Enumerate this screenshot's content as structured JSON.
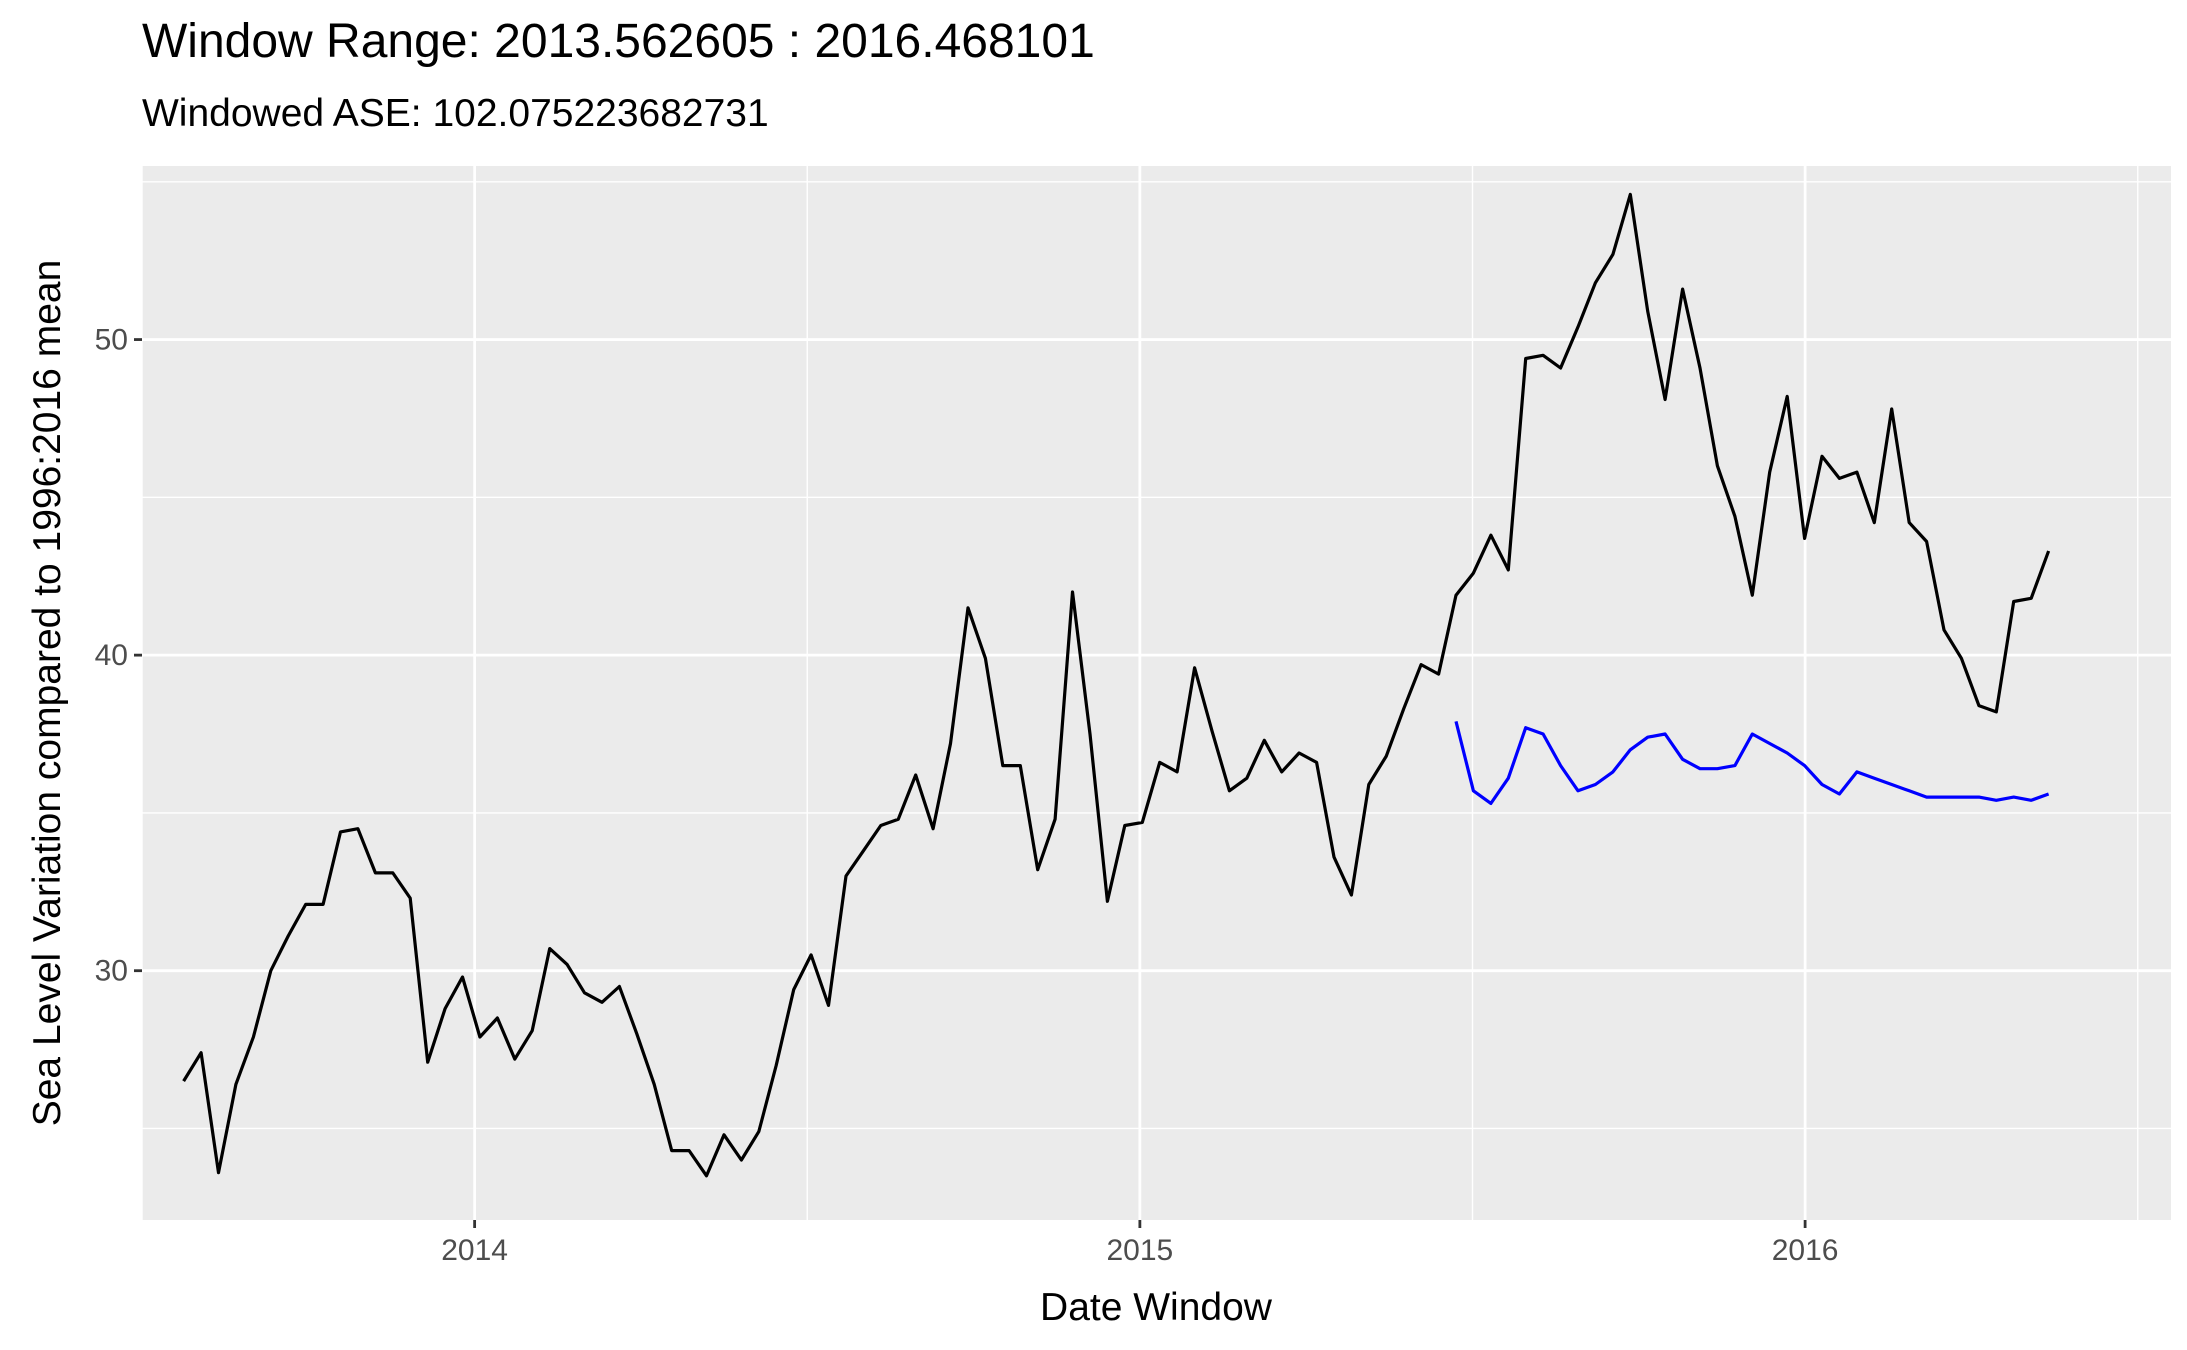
{
  "chart_data": {
    "type": "line",
    "title": "Window Range: 2013.562605 : 2016.468101",
    "subtitle": "Windowed ASE: 102.075223682731",
    "xlabel": "Date Window",
    "ylabel": "Sea Level Variation compared to 1996:2016 mean",
    "xlim": [
      2013.5,
      2016.55
    ],
    "ylim": [
      22.1,
      55.5
    ],
    "x_ticks": [
      2014,
      2015,
      2016
    ],
    "y_ticks": [
      30,
      40,
      50
    ],
    "grid": true,
    "legend": "none",
    "series": [
      {
        "color": "#000000",
        "points": [
          [
            2013.5626,
            26.5
          ],
          [
            2013.5888,
            27.4
          ],
          [
            2013.615,
            23.6
          ],
          [
            2013.6412,
            26.4
          ],
          [
            2013.6674,
            27.9
          ],
          [
            2013.6936,
            30.0
          ],
          [
            2013.7198,
            31.1
          ],
          [
            2013.746,
            32.1
          ],
          [
            2013.7722,
            32.1
          ],
          [
            2013.7984,
            34.4
          ],
          [
            2013.8246,
            34.5
          ],
          [
            2013.8508,
            33.1
          ],
          [
            2013.877,
            33.1
          ],
          [
            2013.9032,
            32.3
          ],
          [
            2013.9294,
            27.1
          ],
          [
            2013.9556,
            28.8
          ],
          [
            2013.9818,
            29.8
          ],
          [
            2014.008,
            27.9
          ],
          [
            2014.0342,
            28.5
          ],
          [
            2014.0604,
            27.2
          ],
          [
            2014.0866,
            28.1
          ],
          [
            2014.1128,
            30.7
          ],
          [
            2014.139,
            30.2
          ],
          [
            2014.1652,
            29.3
          ],
          [
            2014.1914,
            29.0
          ],
          [
            2014.2176,
            29.5
          ],
          [
            2014.2438,
            28.0
          ],
          [
            2014.27,
            26.4
          ],
          [
            2014.2962,
            24.3
          ],
          [
            2014.3224,
            24.3
          ],
          [
            2014.3486,
            23.5
          ],
          [
            2014.3748,
            24.8
          ],
          [
            2014.401,
            24.0
          ],
          [
            2014.4272,
            24.9
          ],
          [
            2014.4534,
            27.0
          ],
          [
            2014.4796,
            29.4
          ],
          [
            2014.5058,
            30.5
          ],
          [
            2014.532,
            28.9
          ],
          [
            2014.5582,
            33.0
          ],
          [
            2014.5844,
            33.8
          ],
          [
            2014.6106,
            34.6
          ],
          [
            2014.6368,
            34.8
          ],
          [
            2014.663,
            36.2
          ],
          [
            2014.6892,
            34.5
          ],
          [
            2014.7154,
            37.2
          ],
          [
            2014.7416,
            41.5
          ],
          [
            2014.7678,
            39.9
          ],
          [
            2014.794,
            36.5
          ],
          [
            2014.8202,
            36.5
          ],
          [
            2014.8464,
            33.2
          ],
          [
            2014.8726,
            34.8
          ],
          [
            2014.8988,
            42.0
          ],
          [
            2014.925,
            37.5
          ],
          [
            2014.9512,
            32.2
          ],
          [
            2014.9774,
            34.6
          ],
          [
            2015.0036,
            34.7
          ],
          [
            2015.0298,
            36.6
          ],
          [
            2015.056,
            36.3
          ],
          [
            2015.0822,
            39.6
          ],
          [
            2015.1084,
            37.6
          ],
          [
            2015.1346,
            35.7
          ],
          [
            2015.1608,
            36.1
          ],
          [
            2015.187,
            37.3
          ],
          [
            2015.2132,
            36.3
          ],
          [
            2015.2394,
            36.9
          ],
          [
            2015.2656,
            36.6
          ],
          [
            2015.2918,
            33.6
          ],
          [
            2015.318,
            32.4
          ],
          [
            2015.3442,
            35.9
          ],
          [
            2015.3704,
            36.8
          ],
          [
            2015.3966,
            38.3
          ],
          [
            2015.4228,
            39.7
          ],
          [
            2015.449,
            39.4
          ],
          [
            2015.4752,
            41.9
          ],
          [
            2015.5014,
            42.6
          ],
          [
            2015.5276,
            43.8
          ],
          [
            2015.5538,
            42.7
          ],
          [
            2015.58,
            49.4
          ],
          [
            2015.6062,
            49.5
          ],
          [
            2015.6324,
            49.1
          ],
          [
            2015.6586,
            50.4
          ],
          [
            2015.6848,
            51.8
          ],
          [
            2015.711,
            52.7
          ],
          [
            2015.7372,
            54.6
          ],
          [
            2015.7634,
            50.9
          ],
          [
            2015.7896,
            48.1
          ],
          [
            2015.8158,
            51.6
          ],
          [
            2015.842,
            49.1
          ],
          [
            2015.8682,
            46.0
          ],
          [
            2015.8944,
            44.4
          ],
          [
            2015.9206,
            41.9
          ],
          [
            2015.9468,
            45.8
          ],
          [
            2015.973,
            48.2
          ],
          [
            2015.9992,
            43.7
          ],
          [
            2016.0254,
            46.3
          ],
          [
            2016.0516,
            45.6
          ],
          [
            2016.0778,
            45.8
          ],
          [
            2016.104,
            44.2
          ],
          [
            2016.1302,
            47.8
          ],
          [
            2016.1564,
            44.2
          ],
          [
            2016.1826,
            43.6
          ],
          [
            2016.2088,
            40.8
          ],
          [
            2016.235,
            39.9
          ],
          [
            2016.2612,
            38.4
          ],
          [
            2016.2874,
            38.2
          ],
          [
            2016.3136,
            41.7
          ],
          [
            2016.3398,
            41.8
          ],
          [
            2016.366,
            43.3
          ]
        ]
      },
      {
        "color": "#0000ff",
        "points": [
          [
            2015.4752,
            37.9
          ],
          [
            2015.5014,
            35.7
          ],
          [
            2015.5276,
            35.3
          ],
          [
            2015.5538,
            36.1
          ],
          [
            2015.58,
            37.7
          ],
          [
            2015.6062,
            37.5
          ],
          [
            2015.6324,
            36.5
          ],
          [
            2015.6586,
            35.7
          ],
          [
            2015.6848,
            35.9
          ],
          [
            2015.711,
            36.3
          ],
          [
            2015.7372,
            37.0
          ],
          [
            2015.7634,
            37.4
          ],
          [
            2015.7896,
            37.5
          ],
          [
            2015.8158,
            36.7
          ],
          [
            2015.842,
            36.4
          ],
          [
            2015.8682,
            36.4
          ],
          [
            2015.8944,
            36.5
          ],
          [
            2015.9206,
            37.5
          ],
          [
            2015.9468,
            37.2
          ],
          [
            2015.973,
            36.9
          ],
          [
            2015.9992,
            36.5
          ],
          [
            2016.0254,
            35.9
          ],
          [
            2016.0516,
            35.6
          ],
          [
            2016.0778,
            36.3
          ],
          [
            2016.104,
            36.1
          ],
          [
            2016.1302,
            35.9
          ],
          [
            2016.1564,
            35.7
          ],
          [
            2016.1826,
            35.5
          ],
          [
            2016.2088,
            35.5
          ],
          [
            2016.235,
            35.5
          ],
          [
            2016.2612,
            35.5
          ],
          [
            2016.2874,
            35.4
          ],
          [
            2016.3136,
            35.5
          ],
          [
            2016.3398,
            35.4
          ],
          [
            2016.366,
            35.6
          ]
        ]
      }
    ]
  }
}
